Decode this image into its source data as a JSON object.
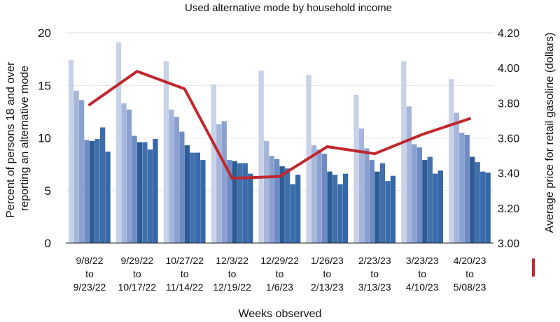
{
  "chart_data": {
    "type": "bar",
    "title": "Used alternative mode by household income",
    "xlabel": "Weeks observed",
    "ylabel_left_lines": [
      "Percent of persons 18 and over",
      "reporting an alternative mode"
    ],
    "ylabel_right": "Average price for retail gasoline (dollars)",
    "ylim_left": [
      0,
      20
    ],
    "yticks_left": [
      "0",
      "5",
      "10",
      "15",
      "20"
    ],
    "ylim_right": [
      3.0,
      4.2
    ],
    "yticks_right": [
      "3.00",
      "3.20",
      "3.40",
      "3.60",
      "3.80",
      "4.00",
      "4.20"
    ],
    "categories": [
      [
        "9/8/22",
        "to",
        "9/23/22"
      ],
      [
        "9/29/22",
        "to",
        "10/17/22"
      ],
      [
        "10/27/22",
        "to",
        "11/14/22"
      ],
      [
        "12/3/22",
        "to",
        "12/19/22"
      ],
      [
        "12/29/22",
        "to",
        "1/6/23"
      ],
      [
        "1/26/23",
        "to",
        "2/13/23"
      ],
      [
        "2/23/23",
        "to",
        "3/13/23"
      ],
      [
        "3/23/23",
        "to",
        "4/10/23"
      ],
      [
        "4/20/23",
        "to",
        "5/08/23"
      ]
    ],
    "bar_series_colors": [
      "#c8d2e8",
      "#a6b6da",
      "#8aa1d0",
      "#6e8cc3",
      "#2e5c94",
      "#4170ad",
      "#3a6bab",
      "#3668a8"
    ],
    "bar_series": [
      {
        "values": [
          17.4,
          19.1,
          17.3,
          15.1,
          16.4,
          16.0,
          14.1,
          17.3,
          15.6
        ]
      },
      {
        "values": [
          14.5,
          13.3,
          12.7,
          11.3,
          9.7,
          9.3,
          10.9,
          13.0,
          12.4
        ]
      },
      {
        "values": [
          13.6,
          12.7,
          12.0,
          11.6,
          8.3,
          8.9,
          9.0,
          9.4,
          10.5
        ]
      },
      {
        "values": [
          9.8,
          10.2,
          10.6,
          7.9,
          8.0,
          8.5,
          7.9,
          9.1,
          10.3
        ]
      },
      {
        "values": [
          9.7,
          9.6,
          9.3,
          7.8,
          7.3,
          6.8,
          6.8,
          7.9,
          8.2
        ]
      },
      {
        "values": [
          9.9,
          9.6,
          8.6,
          7.6,
          7.1,
          6.5,
          7.6,
          8.2,
          7.7
        ]
      },
      {
        "values": [
          11.0,
          8.9,
          8.6,
          7.6,
          5.6,
          5.6,
          5.9,
          6.6,
          6.8
        ]
      },
      {
        "values": [
          8.7,
          9.9,
          7.9,
          6.6,
          6.5,
          6.6,
          6.4,
          6.9,
          6.7
        ]
      }
    ],
    "line_series": {
      "color": "#c1272d",
      "legend_label": "Average price for retail gasoline (dollars)",
      "values": [
        3.79,
        3.98,
        3.88,
        3.37,
        3.38,
        3.55,
        3.51,
        3.62,
        3.71
      ]
    }
  }
}
